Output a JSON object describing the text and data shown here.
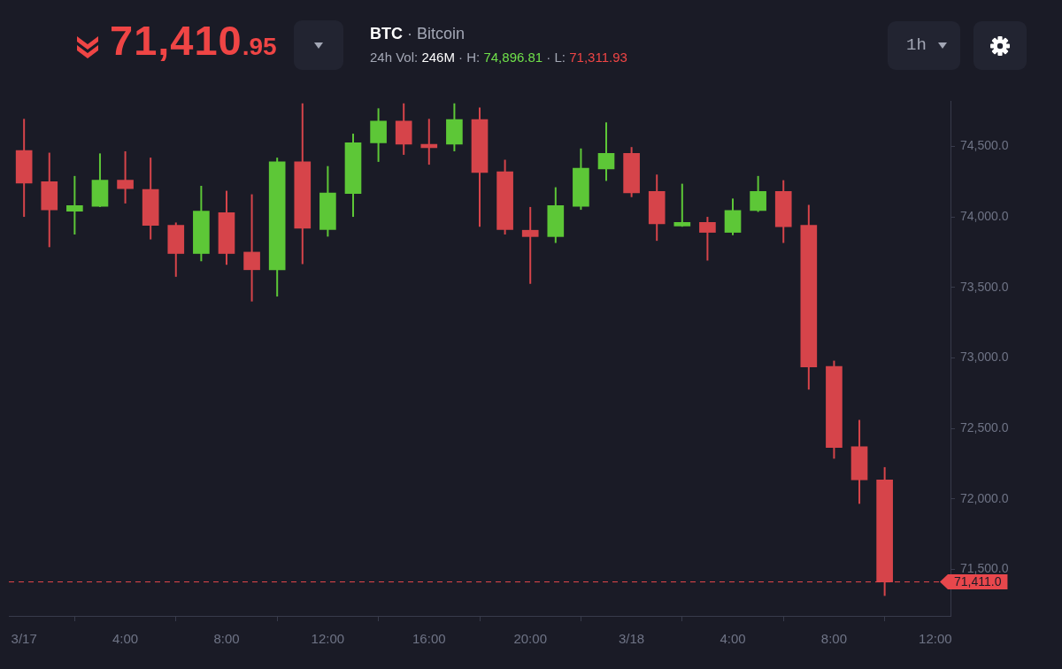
{
  "chart_data": {
    "type": "candlestick",
    "title": "BTC · Bitcoin",
    "subtitle": "24h Vol: 246M · H: 74,896.81 · L: 71,311.93",
    "annotations": [
      "71,410.95",
      "1h"
    ],
    "x": [
      "--03-17T00:00",
      "--03-17T01:00",
      "--03-17T02:00",
      "--03-17T03:00",
      "--03-17T04:00",
      "--03-17T05:00",
      "--03-17T06:00",
      "--03-17T07:00",
      "--03-17T08:00",
      "--03-17T09:00",
      "--03-17T10:00",
      "--03-17T11:00",
      "--03-17T12:00",
      "--03-17T13:00",
      "--03-17T14:00",
      "--03-17T15:00",
      "--03-17T16:00",
      "--03-17T17:00",
      "--03-17T18:00",
      "--03-17T19:00",
      "--03-17T20:00",
      "--03-17T21:00",
      "--03-17T22:00",
      "--03-17T23:00",
      "--03-18T00:00",
      "--03-18T01:00",
      "--03-18T02:00",
      "--03-18T03:00",
      "--03-18T04:00",
      "--03-18T05:00",
      "--03-18T06:00",
      "--03-18T07:00",
      "--03-18T08:00",
      "--03-18T09:00",
      "--03-18T10:00"
    ],
    "ohlc": [
      [
        74470,
        74695,
        74000,
        74240
      ],
      [
        74250,
        74455,
        73785,
        74050
      ],
      [
        74040,
        74290,
        73875,
        74080
      ],
      [
        74075,
        74450,
        74070,
        74260
      ],
      [
        74260,
        74465,
        74095,
        74200
      ],
      [
        74195,
        74420,
        73840,
        73940
      ],
      [
        73940,
        73960,
        73575,
        73740
      ],
      [
        73740,
        74220,
        73685,
        74040
      ],
      [
        74030,
        74185,
        73660,
        73740
      ],
      [
        73750,
        74160,
        73400,
        73625
      ],
      [
        73625,
        74420,
        73435,
        74390
      ],
      [
        74390,
        74805,
        73665,
        73920
      ],
      [
        73910,
        74360,
        73860,
        74170
      ],
      [
        74165,
        74590,
        74000,
        74525
      ],
      [
        74525,
        74770,
        74390,
        74680
      ],
      [
        74680,
        74805,
        74440,
        74515
      ],
      [
        74515,
        74695,
        74370,
        74490
      ],
      [
        74515,
        74805,
        74465,
        74690
      ],
      [
        74690,
        74775,
        73930,
        74315
      ],
      [
        74320,
        74405,
        73875,
        73910
      ],
      [
        73905,
        74070,
        73525,
        73860
      ],
      [
        73860,
        74210,
        73815,
        74080
      ],
      [
        74075,
        74485,
        74050,
        74345
      ],
      [
        74340,
        74670,
        74255,
        74450
      ],
      [
        74450,
        74495,
        74140,
        74170
      ],
      [
        74180,
        74300,
        73830,
        73950
      ],
      [
        73935,
        74235,
        73930,
        73960
      ],
      [
        73960,
        74000,
        73690,
        73890
      ],
      [
        73890,
        74130,
        73870,
        74045
      ],
      [
        74045,
        74290,
        74035,
        74180
      ],
      [
        74180,
        74260,
        73815,
        73930
      ],
      [
        73940,
        74085,
        72775,
        72935
      ],
      [
        72940,
        72980,
        72285,
        72365
      ],
      [
        72370,
        72560,
        71965,
        72135
      ],
      [
        72135,
        72225,
        71312,
        71411
      ]
    ],
    "colors": [
      "#d6444a",
      "#d6444a",
      "#5dc737",
      "#5dc737",
      "#d6444a",
      "#d6444a",
      "#d6444a",
      "#5dc737",
      "#d6444a",
      "#d6444a",
      "#5dc737",
      "#d6444a",
      "#5dc737",
      "#5dc737",
      "#5dc737",
      "#d6444a",
      "#d6444a",
      "#5dc737",
      "#d6444a",
      "#d6444a",
      "#d6444a",
      "#5dc737",
      "#5dc737",
      "#5dc737",
      "#d6444a",
      "#d6444a",
      "#5dc737",
      "#d6444a",
      "#5dc737",
      "#5dc737",
      "#d6444a",
      "#d6444a",
      "#d6444a",
      "#d6444a",
      "#d6444a"
    ],
    "xlim": [
      "--03-16T23:24",
      "--03-18T12:36"
    ],
    "xticks": [
      {
        "value": "--03-17T00:00",
        "label": "3/17"
      },
      {
        "value": "--03-17T04:00",
        "label": "4:00"
      },
      {
        "value": "--03-17T08:00",
        "label": "8:00"
      },
      {
        "value": "--03-17T12:00",
        "label": "12:00"
      },
      {
        "value": "--03-17T16:00",
        "label": "16:00"
      },
      {
        "value": "--03-17T20:00",
        "label": "20:00"
      },
      {
        "value": "--03-18T00:00",
        "label": "3/18"
      },
      {
        "value": "--03-18T04:00",
        "label": "4:00"
      },
      {
        "value": "--03-18T08:00",
        "label": "8:00"
      },
      {
        "value": "--03-18T12:00",
        "label": "12:00"
      }
    ],
    "ylim": [
      71170,
      74820
    ],
    "yticks": [
      {
        "value": 71500,
        "label": "71,500.0"
      },
      {
        "value": 72000,
        "label": "72,000.0"
      },
      {
        "value": 72500,
        "label": "72,500.0"
      },
      {
        "value": 73000,
        "label": "73,000.0"
      },
      {
        "value": 73500,
        "label": "73,500.0"
      },
      {
        "value": 74000,
        "label": "74,000.0"
      },
      {
        "value": 74500,
        "label": "74,500.0"
      }
    ],
    "ref_lines": [
      {
        "axis": "y",
        "value": 71411,
        "label": "71,411.0",
        "color": "#e8474c",
        "line_style": "dashed"
      }
    ]
  }
}
